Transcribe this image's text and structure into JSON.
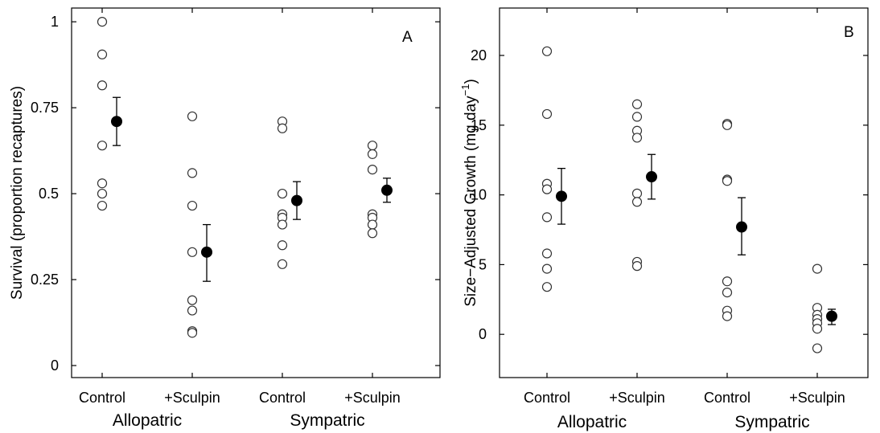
{
  "chart_data": [
    {
      "type": "scatter",
      "panel": "A",
      "title": "",
      "ylabel": "Survival (proportion recaptures)",
      "xlabel": "",
      "ylim": [
        -0.035,
        1.04
      ],
      "yticks": [
        0,
        0.25,
        0.5,
        0.75,
        1
      ],
      "ytick_labels": [
        "0",
        "0.25",
        "0.5",
        "0.75",
        "1"
      ],
      "categories": [
        "Control",
        "+Sculpin",
        "Control",
        "+Sculpin"
      ],
      "groups": [
        {
          "label": "Allopatric",
          "categories": [
            0,
            1
          ]
        },
        {
          "label": "Sympatric",
          "categories": [
            2,
            3
          ]
        }
      ],
      "grid": false,
      "legend": "none",
      "points": [
        [
          1.0,
          0.905,
          0.815,
          0.64,
          0.53,
          0.5,
          0.465
        ],
        [
          0.725,
          0.56,
          0.465,
          0.33,
          0.19,
          0.16,
          0.1,
          0.095
        ],
        [
          0.71,
          0.69,
          0.5,
          0.44,
          0.43,
          0.41,
          0.35,
          0.295
        ],
        [
          0.64,
          0.615,
          0.57,
          0.44,
          0.43,
          0.41,
          0.385
        ]
      ],
      "means": [
        0.71,
        0.33,
        0.48,
        0.51
      ],
      "error": [
        [
          0.64,
          0.78
        ],
        [
          0.245,
          0.41
        ],
        [
          0.425,
          0.535
        ],
        [
          0.475,
          0.545
        ]
      ]
    },
    {
      "type": "scatter",
      "panel": "B",
      "title": "",
      "ylabel": "Size−Adjusted Growth (mg day",
      "ylabel_sup": "−1",
      "ylabel_end": ")",
      "xlabel": "",
      "ylim": [
        -3.1,
        23.4
      ],
      "yticks": [
        0,
        5,
        10,
        15,
        20
      ],
      "ytick_labels": [
        "0",
        "5",
        "10",
        "15",
        "20"
      ],
      "categories": [
        "Control",
        "+Sculpin",
        "Control",
        "+Sculpin"
      ],
      "groups": [
        {
          "label": "Allopatric",
          "categories": [
            0,
            1
          ]
        },
        {
          "label": "Sympatric",
          "categories": [
            2,
            3
          ]
        }
      ],
      "grid": false,
      "legend": "none",
      "points": [
        [
          20.3,
          15.8,
          10.8,
          10.4,
          8.4,
          5.8,
          4.7,
          3.4
        ],
        [
          16.5,
          15.6,
          14.6,
          14.1,
          10.1,
          9.5,
          5.2,
          4.9
        ],
        [
          15.1,
          15.0,
          11.1,
          11.0,
          3.8,
          3.0,
          1.7,
          1.3
        ],
        [
          4.7,
          1.9,
          1.4,
          1.1,
          0.8,
          0.4,
          -1.0
        ]
      ],
      "means": [
        9.9,
        11.3,
        7.7,
        1.3
      ],
      "error": [
        [
          7.9,
          11.9
        ],
        [
          9.7,
          12.9
        ],
        [
          5.7,
          9.8
        ],
        [
          0.7,
          1.8
        ]
      ]
    }
  ]
}
